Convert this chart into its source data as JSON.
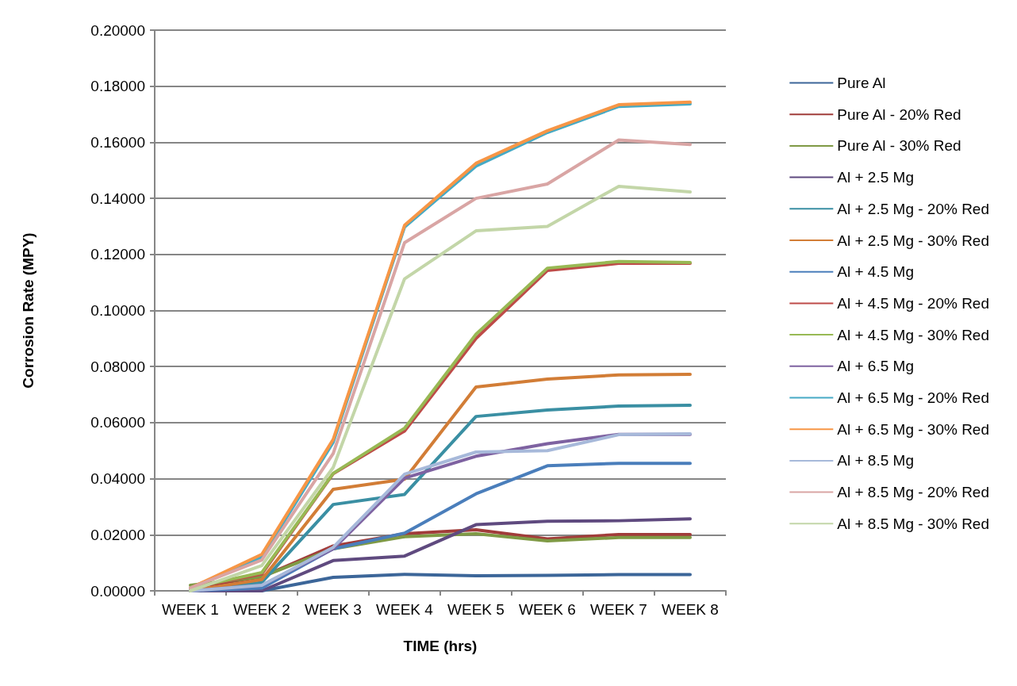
{
  "chart_data": {
    "type": "line",
    "xlabel": "TIME (hrs)",
    "ylabel": "Corrosion Rate (MPY)",
    "categories": [
      "WEEK 1",
      "WEEK 2",
      "WEEK 3",
      "WEEK 4",
      "WEEK 5",
      "WEEK 6",
      "WEEK 7",
      "WEEK 8"
    ],
    "ylim": [
      0,
      0.2
    ],
    "yticks": [
      {
        "value": 0,
        "label": "0.00000"
      },
      {
        "value": 0.02,
        "label": "0.02000"
      },
      {
        "value": 0.04,
        "label": "0.04000"
      },
      {
        "value": 0.06,
        "label": "0.06000"
      },
      {
        "value": 0.08,
        "label": "0.08000"
      },
      {
        "value": 0.1,
        "label": "0.10000"
      },
      {
        "value": 0.12,
        "label": "0.12000"
      },
      {
        "value": 0.14,
        "label": "0.14000"
      },
      {
        "value": 0.16,
        "label": "0.16000"
      },
      {
        "value": 0.18,
        "label": "0.18000"
      },
      {
        "value": 0.2,
        "label": "0.20000"
      }
    ],
    "grid": "y",
    "legend": "right",
    "marker": "none",
    "line_style": "solid",
    "series": [
      {
        "name": "Pure Al",
        "color": "#3c6699",
        "values": [
          0,
          0,
          0.0048,
          0.0059,
          0.0054,
          0.0055,
          0.0058,
          0.0058
        ]
      },
      {
        "name": "Pure Al - 20% Red",
        "color": "#a13c3a",
        "values": [
          0.001,
          0.005,
          0.016,
          0.0204,
          0.0218,
          0.0185,
          0.0201,
          0.0201
        ]
      },
      {
        "name": "Pure Al - 30% Red",
        "color": "#7f9a45",
        "values": [
          0.002,
          0.005,
          0.015,
          0.0193,
          0.0204,
          0.0178,
          0.019,
          0.019
        ]
      },
      {
        "name": "Al + 2.5 Mg",
        "color": "#5f4a7f",
        "values": [
          0,
          0,
          0.0108,
          0.0124,
          0.0236,
          0.0248,
          0.025,
          0.0257
        ]
      },
      {
        "name": "Al + 2.5 Mg - 20% Red",
        "color": "#3a8fa3",
        "values": [
          0,
          0.003,
          0.0308,
          0.0344,
          0.0622,
          0.0645,
          0.0659,
          0.0662
        ]
      },
      {
        "name": "Al + 2.5 Mg - 30% Red",
        "color": "#d27d36",
        "values": [
          0,
          0.004,
          0.0362,
          0.0398,
          0.0727,
          0.0755,
          0.077,
          0.0772
        ]
      },
      {
        "name": "Al + 4.5 Mg",
        "color": "#4a7ebb",
        "values": [
          0,
          0.001,
          0.015,
          0.0206,
          0.0346,
          0.0446,
          0.0455,
          0.0455
        ]
      },
      {
        "name": "Al + 4.5 Mg - 20% Red",
        "color": "#be4b48",
        "values": [
          0.001,
          0.006,
          0.0418,
          0.057,
          0.09,
          0.1143,
          0.1168,
          0.1168
        ]
      },
      {
        "name": "Al + 4.5 Mg - 30% Red",
        "color": "#98b954",
        "values": [
          0.001,
          0.0065,
          0.0419,
          0.058,
          0.0915,
          0.1151,
          0.1175,
          0.1171
        ]
      },
      {
        "name": "Al + 6.5 Mg",
        "color": "#7e62a1",
        "values": [
          0,
          0.002,
          0.015,
          0.0402,
          0.048,
          0.0525,
          0.0558,
          0.0558
        ]
      },
      {
        "name": "Al + 6.5 Mg - 20% Red",
        "color": "#46aac5",
        "values": [
          0.001,
          0.012,
          0.053,
          0.1298,
          0.1515,
          0.1635,
          0.1728,
          0.1737
        ]
      },
      {
        "name": "Al + 6.5 Mg - 30% Red",
        "color": "#f79646",
        "values": [
          0.001,
          0.013,
          0.054,
          0.1304,
          0.1525,
          0.1641,
          0.1734,
          0.1743
        ]
      },
      {
        "name": "Al + 8.5 Mg",
        "color": "#a7b9da",
        "values": [
          0,
          0.002,
          0.0155,
          0.0416,
          0.0495,
          0.05,
          0.0557,
          0.056
        ]
      },
      {
        "name": "Al + 8.5 Mg - 20% Red",
        "color": "#d9a5a4",
        "values": [
          0.001,
          0.011,
          0.049,
          0.1242,
          0.14,
          0.1451,
          0.1608,
          0.1592
        ]
      },
      {
        "name": "Al + 8.5 Mg - 30% Red",
        "color": "#c3d6a8",
        "values": [
          0,
          0.009,
          0.044,
          0.1113,
          0.1284,
          0.13,
          0.1443,
          0.1423
        ]
      }
    ]
  }
}
